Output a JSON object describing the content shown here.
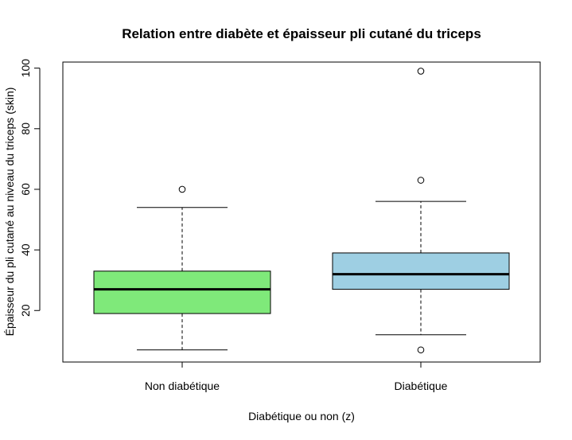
{
  "chart_data": {
    "type": "boxplot",
    "title": "Relation entre diabète et épaisseur pli cutané du triceps",
    "xlabel": "Diabétique ou non (z)",
    "ylabel": "Épaisseur du pli cutané au niveau du triceps (skin)",
    "ylim": [
      3,
      102
    ],
    "yticks": [
      20,
      40,
      60,
      80,
      100
    ],
    "categories": [
      "Non diabétique",
      "Diabétique"
    ],
    "boxes": [
      {
        "category": "Non diabétique",
        "color": "#7FE97A",
        "whisker_low": 7,
        "q1": 19,
        "median": 27,
        "q3": 33,
        "whisker_high": 54,
        "outliers": [
          60
        ]
      },
      {
        "category": "Diabétique",
        "color": "#9ECFE3",
        "whisker_low": 12,
        "q1": 27,
        "median": 32,
        "q3": 39,
        "whisker_high": 56,
        "outliers": [
          7,
          63,
          99
        ]
      }
    ]
  }
}
